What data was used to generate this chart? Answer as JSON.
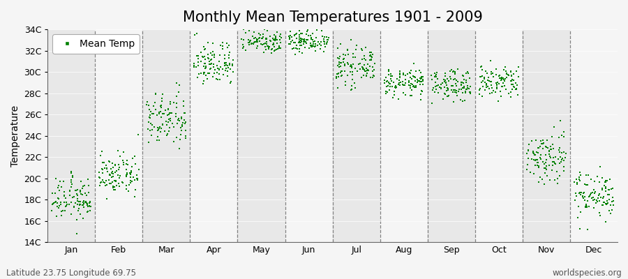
{
  "title": "Monthly Mean Temperatures 1901 - 2009",
  "ylabel": "Temperature",
  "xlabel": "",
  "bottom_left_text": "Latitude 23.75 Longitude 69.75",
  "bottom_right_text": "worldspecies.org",
  "legend_label": "Mean Temp",
  "marker_color": "#008000",
  "marker_size": 4,
  "ylim": [
    14,
    34
  ],
  "ytick_values": [
    14,
    16,
    18,
    20,
    22,
    24,
    26,
    28,
    30,
    32,
    34
  ],
  "ytick_labels": [
    "14C",
    "16C",
    "18C",
    "20C",
    "22C",
    "24C",
    "26C",
    "28C",
    "30C",
    "32C",
    "34C"
  ],
  "month_names": [
    "Jan",
    "Feb",
    "Mar",
    "Apr",
    "May",
    "Jun",
    "Jul",
    "Aug",
    "Sep",
    "Oct",
    "Nov",
    "Dec"
  ],
  "month_means": [
    18.0,
    20.3,
    25.5,
    30.8,
    33.0,
    33.0,
    30.5,
    29.0,
    28.8,
    29.0,
    22.0,
    18.5
  ],
  "month_stds": [
    1.0,
    0.9,
    1.3,
    1.0,
    0.6,
    0.6,
    0.8,
    0.6,
    0.7,
    0.8,
    1.3,
    1.1
  ],
  "month_trend": [
    0.006,
    0.005,
    0.006,
    0.005,
    0.004,
    0.004,
    0.005,
    0.004,
    0.004,
    0.005,
    0.006,
    0.006
  ],
  "n_years": 109,
  "start_year": 1901,
  "band_color_even": "#e8e8e8",
  "band_color_odd": "#f5f5f5",
  "plot_bg": "#f5f5f5",
  "grid_color": "#666666",
  "title_fontsize": 15,
  "axis_fontsize": 10,
  "tick_fontsize": 9,
  "annotation_fontsize": 8.5
}
